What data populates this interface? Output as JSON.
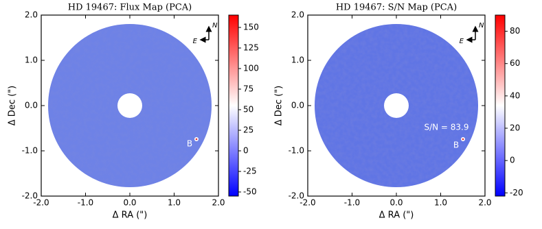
{
  "chart_data": [
    {
      "type": "heatmap",
      "title": "HD 19467: Flux Map (PCA)",
      "xlabel": "Δ RA (\")",
      "ylabel": "Δ Dec (\")",
      "xlim": [
        -2,
        2
      ],
      "xticks": [
        {
          "value": -2,
          "label": "-2.0"
        },
        {
          "value": -1,
          "label": "-1.0"
        },
        {
          "value": 0,
          "label": "0.0"
        },
        {
          "value": 1,
          "label": "1.0"
        },
        {
          "value": 2,
          "label": "2.0"
        }
      ],
      "ylim": [
        -2,
        2
      ],
      "yticks": [
        {
          "value": -2,
          "label": "-2.0"
        },
        {
          "value": -1,
          "label": "-1.0"
        },
        {
          "value": 0,
          "label": "0.0"
        },
        {
          "value": 1,
          "label": "1.0"
        },
        {
          "value": 2,
          "label": "2.0"
        }
      ],
      "colorbar": {
        "lim": [
          -55,
          165
        ],
        "ticks": [
          -50,
          -25,
          0,
          25,
          50,
          75,
          100,
          125,
          150
        ],
        "colormap": "bwr"
      },
      "annotations": [
        "N",
        "E",
        "B"
      ]
    },
    {
      "type": "heatmap",
      "title": "HD 19467: S/N Map (PCA)",
      "xlabel": "Δ RA (\")",
      "ylabel": "Δ Dec (\")",
      "xlim": [
        -2,
        2
      ],
      "xticks": [
        {
          "value": -2,
          "label": "-2.0"
        },
        {
          "value": -1,
          "label": "-1.0"
        },
        {
          "value": 0,
          "label": "0.0"
        },
        {
          "value": 1,
          "label": "1.0"
        },
        {
          "value": 2,
          "label": "2.0"
        }
      ],
      "ylim": [
        -2,
        2
      ],
      "yticks": [
        {
          "value": -2,
          "label": "-2.0"
        },
        {
          "value": -1,
          "label": "-1.0"
        },
        {
          "value": 0,
          "label": "0.0"
        },
        {
          "value": 1,
          "label": "1.0"
        },
        {
          "value": 2,
          "label": "2.0"
        }
      ],
      "colorbar": {
        "lim": [
          -22,
          90
        ],
        "ticks": [
          -20,
          0,
          20,
          40,
          60,
          80
        ],
        "colormap": "bwr"
      },
      "annotations": [
        "N",
        "E",
        "B",
        "S/N = 83.9"
      ]
    }
  ]
}
